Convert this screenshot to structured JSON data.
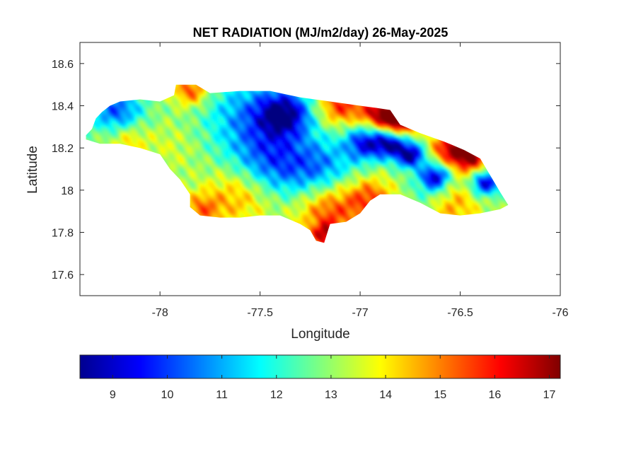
{
  "chart_data": {
    "type": "heatmap",
    "title": "NET RADIATION (MJ/m2/day) 26-May-2025",
    "xlabel": "Longitude",
    "ylabel": "Latitude",
    "xlim": [
      -78.4,
      -76
    ],
    "ylim": [
      17.5,
      18.7
    ],
    "x_ticks": [
      -78,
      -77.5,
      -77,
      -76.5,
      -76
    ],
    "x_tick_labels": [
      "-78",
      "-77.5",
      "-77",
      "-76.5",
      "-76"
    ],
    "y_ticks": [
      17.6,
      17.8,
      18,
      18.2,
      18.4,
      18.6
    ],
    "y_tick_labels": [
      "17.6",
      "17.8",
      "18",
      "18.2",
      "18.4",
      "18.6"
    ],
    "grid": false,
    "colormap": "jet",
    "colorbar": {
      "orientation": "horizontal",
      "location": "bottom",
      "range": [
        8.4,
        17.2
      ],
      "ticks": [
        9,
        10,
        11,
        12,
        13,
        14,
        15,
        16,
        17
      ],
      "tick_labels": [
        "9",
        "10",
        "11",
        "12",
        "13",
        "14",
        "15",
        "16",
        "17"
      ]
    },
    "region_outline": [
      [
        -78.37,
        18.26
      ],
      [
        -78.34,
        18.29
      ],
      [
        -78.32,
        18.34
      ],
      [
        -78.29,
        18.37
      ],
      [
        -78.25,
        18.4
      ],
      [
        -78.2,
        18.42
      ],
      [
        -78.1,
        18.43
      ],
      [
        -78.0,
        18.42
      ],
      [
        -77.93,
        18.45
      ],
      [
        -77.92,
        18.5
      ],
      [
        -77.82,
        18.5
      ],
      [
        -77.75,
        18.46
      ],
      [
        -77.6,
        18.47
      ],
      [
        -77.45,
        18.47
      ],
      [
        -77.3,
        18.44
      ],
      [
        -77.15,
        18.42
      ],
      [
        -77.0,
        18.4
      ],
      [
        -76.92,
        18.39
      ],
      [
        -76.85,
        18.38
      ],
      [
        -76.8,
        18.31
      ],
      [
        -76.7,
        18.27
      ],
      [
        -76.58,
        18.23
      ],
      [
        -76.48,
        18.19
      ],
      [
        -76.4,
        18.15
      ],
      [
        -76.35,
        18.07
      ],
      [
        -76.3,
        17.99
      ],
      [
        -76.26,
        17.93
      ],
      [
        -76.3,
        17.91
      ],
      [
        -76.4,
        17.89
      ],
      [
        -76.5,
        17.88
      ],
      [
        -76.6,
        17.89
      ],
      [
        -76.7,
        17.94
      ],
      [
        -76.8,
        17.98
      ],
      [
        -76.9,
        17.98
      ],
      [
        -76.95,
        17.95
      ],
      [
        -77.0,
        17.89
      ],
      [
        -77.07,
        17.85
      ],
      [
        -77.15,
        17.84
      ],
      [
        -77.18,
        17.75
      ],
      [
        -77.22,
        17.76
      ],
      [
        -77.25,
        17.81
      ],
      [
        -77.3,
        17.84
      ],
      [
        -77.4,
        17.88
      ],
      [
        -77.5,
        17.88
      ],
      [
        -77.6,
        17.87
      ],
      [
        -77.7,
        17.87
      ],
      [
        -77.8,
        17.88
      ],
      [
        -77.85,
        17.92
      ],
      [
        -77.85,
        17.98
      ],
      [
        -77.9,
        18.05
      ],
      [
        -77.95,
        18.1
      ],
      [
        -78.0,
        18.17
      ],
      [
        -78.1,
        18.2
      ],
      [
        -78.2,
        18.22
      ],
      [
        -78.3,
        18.22
      ],
      [
        -78.37,
        18.24
      ]
    ],
    "field": {
      "base": 13.0,
      "features": [
        {
          "lon": -78.22,
          "lat": 18.37,
          "value": 10.2,
          "radius": 0.09
        },
        {
          "lon": -77.55,
          "lat": 18.35,
          "value": 10.8,
          "radius": 0.16
        },
        {
          "lon": -77.38,
          "lat": 18.36,
          "value": 9.4,
          "radius": 0.09
        },
        {
          "lon": -77.45,
          "lat": 18.12,
          "value": 10.4,
          "radius": 0.14
        },
        {
          "lon": -77.2,
          "lat": 18.1,
          "value": 10.8,
          "radius": 0.12
        },
        {
          "lon": -76.98,
          "lat": 18.22,
          "value": 9.6,
          "radius": 0.07
        },
        {
          "lon": -76.85,
          "lat": 18.22,
          "value": 9.0,
          "radius": 0.06
        },
        {
          "lon": -76.75,
          "lat": 18.16,
          "value": 8.8,
          "radius": 0.05
        },
        {
          "lon": -76.63,
          "lat": 18.06,
          "value": 9.2,
          "radius": 0.05
        },
        {
          "lon": -76.38,
          "lat": 18.03,
          "value": 9.0,
          "radius": 0.05
        },
        {
          "lon": -77.1,
          "lat": 18.4,
          "value": 15.8,
          "radius": 0.08
        },
        {
          "lon": -76.9,
          "lat": 18.36,
          "value": 16.8,
          "radius": 0.07
        },
        {
          "lon": -76.8,
          "lat": 18.32,
          "value": 17.2,
          "radius": 0.06
        },
        {
          "lon": -76.55,
          "lat": 18.2,
          "value": 16.5,
          "radius": 0.07
        },
        {
          "lon": -76.45,
          "lat": 18.15,
          "value": 16.6,
          "radius": 0.06
        },
        {
          "lon": -77.85,
          "lat": 18.47,
          "value": 15.6,
          "radius": 0.06
        },
        {
          "lon": -77.15,
          "lat": 17.9,
          "value": 15.6,
          "radius": 0.12
        },
        {
          "lon": -77.18,
          "lat": 17.78,
          "value": 15.8,
          "radius": 0.05
        },
        {
          "lon": -76.95,
          "lat": 17.96,
          "value": 15.2,
          "radius": 0.08
        },
        {
          "lon": -76.55,
          "lat": 17.93,
          "value": 14.8,
          "radius": 0.1
        },
        {
          "lon": -77.6,
          "lat": 17.98,
          "value": 14.9,
          "radius": 0.12
        },
        {
          "lon": -77.8,
          "lat": 17.9,
          "value": 15.0,
          "radius": 0.07
        },
        {
          "lon": -78.17,
          "lat": 18.24,
          "value": 14.3,
          "radius": 0.07
        },
        {
          "lon": -77.95,
          "lat": 18.2,
          "value": 13.5,
          "radius": 0.1
        },
        {
          "lon": -76.65,
          "lat": 17.99,
          "value": 11.8,
          "radius": 0.08
        }
      ]
    }
  }
}
